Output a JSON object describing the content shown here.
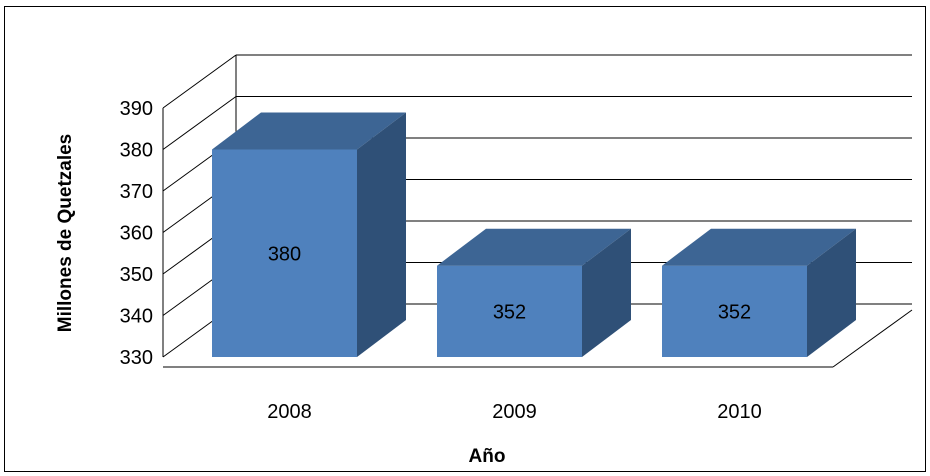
{
  "chart_data": {
    "type": "bar",
    "style": "3d-column",
    "categories": [
      "2008",
      "2009",
      "2010"
    ],
    "values": [
      380,
      352,
      352
    ],
    "data_labels": [
      "380",
      "352",
      "352"
    ],
    "title": "",
    "xlabel": "Año",
    "ylabel": "Millones de Quetzales",
    "ylim": [
      330,
      390
    ],
    "yticks": [
      "330",
      "340",
      "350",
      "360",
      "370",
      "380",
      "390"
    ],
    "grid": true,
    "legend": "none",
    "colors": {
      "bar_front": "#4F81BD",
      "bar_top": "#3D6594",
      "bar_side": "#2F5077",
      "gridline": "#000000",
      "background": "#FFFFFF"
    }
  }
}
